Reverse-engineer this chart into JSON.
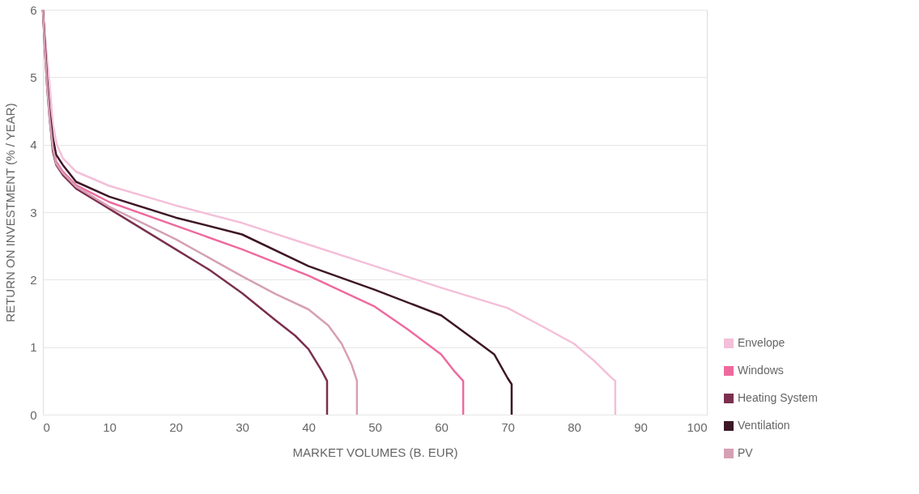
{
  "chart_data": {
    "type": "line",
    "xlabel": "MARKET VOLUMES (B. EUR)",
    "ylabel": "RETURN ON INVESTMENT (% / YEAR)",
    "xlim": [
      0,
      100
    ],
    "xticks": [
      0,
      10,
      20,
      30,
      40,
      50,
      60,
      70,
      80,
      90,
      100
    ],
    "ylim": [
      0,
      6
    ],
    "yticks": [
      0,
      1,
      2,
      3,
      4,
      5,
      6
    ],
    "grid": "y",
    "legend": "bottom right",
    "marker": "none",
    "line_style": "solid",
    "series": [
      {
        "name": "Envelope",
        "color": "#f4bfd8",
        "x": [
          0,
          0.3,
          1,
          1.5,
          2.1,
          3,
          5,
          10,
          20,
          30,
          40,
          50,
          60,
          70,
          75,
          80,
          83,
          85.5,
          86.2,
          86.2
        ],
        "values": [
          6,
          5.6,
          4.9,
          4.3,
          4.0,
          3.8,
          3.6,
          3.39,
          3.1,
          2.84,
          2.52,
          2.2,
          1.88,
          1.58,
          1.32,
          1.05,
          0.8,
          0.56,
          0.5,
          0
        ]
      },
      {
        "name": "Windows",
        "color": "#ee6a9e",
        "x": [
          0,
          0.3,
          0.6,
          1,
          1.5,
          2,
          3,
          5,
          10,
          20,
          30,
          40,
          50,
          55,
          60,
          62,
          63.3,
          63.3
        ],
        "values": [
          6,
          5.5,
          5.0,
          4.5,
          4.0,
          3.75,
          3.6,
          3.4,
          3.15,
          2.8,
          2.45,
          2.06,
          1.6,
          1.26,
          0.89,
          0.64,
          0.5,
          0
        ]
      },
      {
        "name": "Heating System",
        "color": "#7b2f4e",
        "x": [
          0,
          0.3,
          0.6,
          1,
          1.5,
          2,
          3,
          5,
          10,
          20,
          25,
          30,
          35,
          38,
          40,
          42,
          42.8,
          42.8
        ],
        "values": [
          6,
          5.4,
          4.9,
          4.4,
          3.9,
          3.7,
          3.55,
          3.35,
          3.05,
          2.45,
          2.15,
          1.8,
          1.4,
          1.17,
          0.97,
          0.65,
          0.5,
          0
        ]
      },
      {
        "name": "Ventilation",
        "color": "#3d1626",
        "x": [
          0,
          0.3,
          0.6,
          1,
          1.5,
          2,
          3,
          5,
          10,
          20,
          30,
          40,
          50,
          60,
          65,
          68,
          70,
          70.6,
          70.6
        ],
        "values": [
          6,
          5.5,
          5.0,
          4.5,
          4.1,
          3.85,
          3.7,
          3.45,
          3.23,
          2.92,
          2.67,
          2.2,
          1.85,
          1.47,
          1.11,
          0.89,
          0.54,
          0.45,
          0
        ]
      },
      {
        "name": "PV",
        "color": "#d6a0b4",
        "x": [
          0,
          0.3,
          0.6,
          1,
          1.5,
          2,
          3,
          5,
          10,
          20,
          30,
          35,
          40,
          43,
          45,
          46.5,
          47.3,
          47.3
        ],
        "values": [
          6,
          5.4,
          4.9,
          4.4,
          3.95,
          3.72,
          3.58,
          3.38,
          3.08,
          2.6,
          2.05,
          1.79,
          1.56,
          1.32,
          1.05,
          0.74,
          0.5,
          0
        ]
      }
    ]
  }
}
